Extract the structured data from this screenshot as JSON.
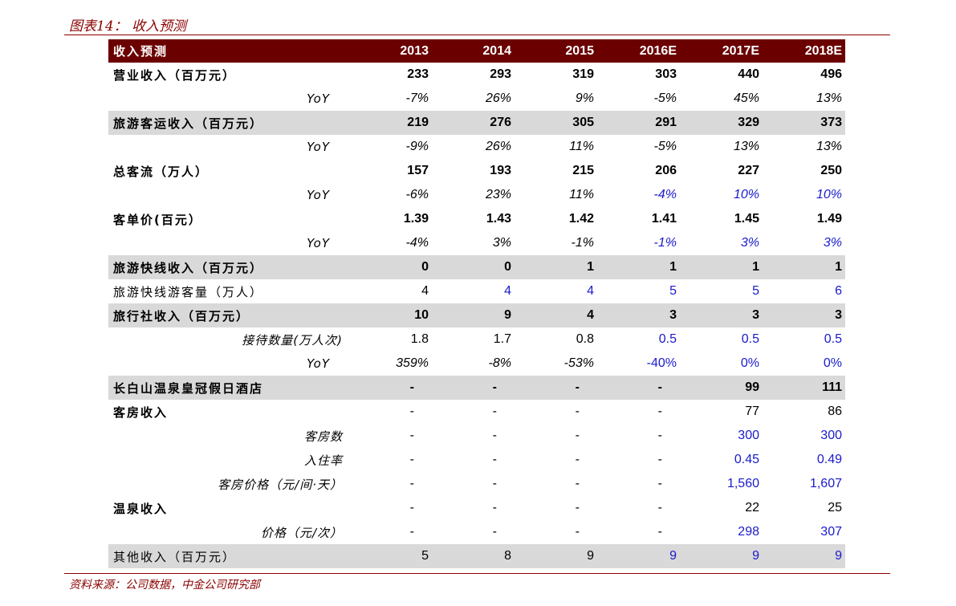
{
  "figure_title": "图表14：  收入预测",
  "source": "资料来源：公司数据，中金公司研究部",
  "header": {
    "label": "收入预测",
    "years": [
      "2013",
      "2014",
      "2015",
      "2016E",
      "2017E",
      "2018E"
    ]
  },
  "rows": [
    {
      "label": "营业收入（百万元）",
      "values": [
        "233",
        "293",
        "319",
        "303",
        "440",
        "496"
      ]
    },
    {
      "label": "YoY",
      "values": [
        "-7%",
        "26%",
        "9%",
        "-5%",
        "45%",
        "13%"
      ]
    },
    {
      "label": "旅游客运收入（百万元）",
      "values": [
        "219",
        "276",
        "305",
        "291",
        "329",
        "373"
      ]
    },
    {
      "label": "YoY",
      "values": [
        "-9%",
        "26%",
        "11%",
        "-5%",
        "13%",
        "13%"
      ]
    },
    {
      "label": "总客流（万人）",
      "values": [
        "157",
        "193",
        "215",
        "206",
        "227",
        "250"
      ]
    },
    {
      "label": "YoY",
      "values": [
        "-6%",
        "23%",
        "11%",
        "-4%",
        "10%",
        "10%"
      ]
    },
    {
      "label": "客单价(百元）",
      "values": [
        "1.39",
        "1.43",
        "1.42",
        "1.41",
        "1.45",
        "1.49"
      ]
    },
    {
      "label": "YoY",
      "values": [
        "-4%",
        "3%",
        "-1%",
        "-1%",
        "3%",
        "3%"
      ]
    },
    {
      "label": "旅游快线收入（百万元）",
      "values": [
        "0",
        "0",
        "1",
        "1",
        "1",
        "1"
      ]
    },
    {
      "label": "旅游快线游客量（万人）",
      "values": [
        "4",
        "4",
        "4",
        "5",
        "5",
        "6"
      ]
    },
    {
      "label": "旅行社收入（百万元）",
      "values": [
        "10",
        "9",
        "4",
        "3",
        "3",
        "3"
      ]
    },
    {
      "label": "接待数量(万人次)",
      "values": [
        "1.8",
        "1.7",
        "0.8",
        "0.5",
        "0.5",
        "0.5"
      ]
    },
    {
      "label": "YoY",
      "values": [
        "359%",
        "-8%",
        "-53%",
        "-40%",
        "0%",
        "0%"
      ]
    },
    {
      "label": "长白山温泉皇冠假日酒店",
      "values": [
        "-",
        "-",
        "-",
        "-",
        "99",
        "111"
      ]
    },
    {
      "label": "客房收入",
      "values": [
        "-",
        "-",
        "-",
        "-",
        "77",
        "86"
      ]
    },
    {
      "label": "客房数",
      "values": [
        "-",
        "-",
        "-",
        "-",
        "300",
        "300"
      ]
    },
    {
      "label": "入住率",
      "values": [
        "-",
        "-",
        "-",
        "-",
        "0.45",
        "0.49"
      ]
    },
    {
      "label": "客房价格（元/间·天）",
      "values": [
        "-",
        "-",
        "-",
        "-",
        "1,560",
        "1,607"
      ]
    },
    {
      "label": "温泉收入",
      "values": [
        "-",
        "-",
        "-",
        "-",
        "22",
        "25"
      ]
    },
    {
      "label": "价格（元/次）",
      "values": [
        "-",
        "-",
        "-",
        "-",
        "298",
        "307"
      ]
    },
    {
      "label": "其他收入（百万元）",
      "values": [
        "5",
        "8",
        "9",
        "9",
        "9",
        "9"
      ]
    }
  ],
  "colors": {
    "header_bg": "#6b0000",
    "accent": "#8b0000",
    "shade": "#d9d9d9",
    "forecast_blue": "#1a1acc"
  }
}
